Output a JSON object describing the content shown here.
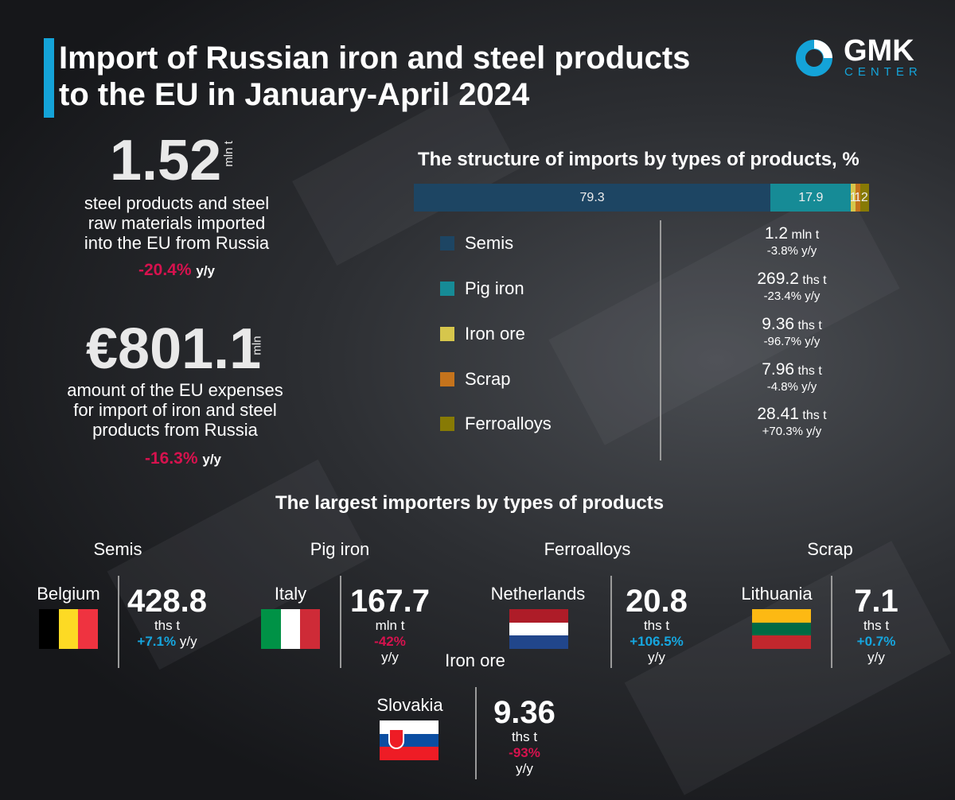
{
  "header": {
    "title_line1": "Import of Russian iron and steel products",
    "title_line2": "to the EU in January-April 2024",
    "accent_color": "#14a3d8"
  },
  "logo": {
    "name": "GMK",
    "sub": "CENTER"
  },
  "kpi_volume": {
    "value": "1.52",
    "unit": "mln t",
    "desc": [
      "steel products and steel",
      "raw materials imported",
      "into the EU from Russia"
    ],
    "change": "-20.4%",
    "yy": "y/y"
  },
  "kpi_cost": {
    "value": "€801.1",
    "unit": "mln",
    "desc": [
      "amount of the EU expenses",
      "for import of iron and steel",
      "products from Russia"
    ],
    "change": "-16.3%",
    "yy": "y/y"
  },
  "chart_data": {
    "type": "bar",
    "orientation": "horizontal-stacked",
    "title": "The structure of imports by types of products, %",
    "categories": [
      "Semis",
      "Pig iron",
      "Iron ore",
      "Scrap",
      "Ferroalloys"
    ],
    "values": [
      79.3,
      17.9,
      1,
      1,
      2
    ],
    "data_labels": [
      "79.3",
      "17.9",
      "1",
      "1",
      "2"
    ],
    "colors": [
      "#1d4563",
      "#168b96",
      "#d6c64c",
      "#c5731c",
      "#877a05"
    ],
    "legend": "below-left"
  },
  "volumes": [
    {
      "value": "1.2",
      "unit": "mln t",
      "change": "-3.8% y/y"
    },
    {
      "value": "269.2",
      "unit": "ths t",
      "change": "-23.4% y/y"
    },
    {
      "value": "9.36",
      "unit": "ths t",
      "change": "-96.7% y/y"
    },
    {
      "value": "7.96",
      "unit": "ths t",
      "change": "-4.8% y/y"
    },
    {
      "value": "28.41",
      "unit": "ths t",
      "change": "+70.3% y/y"
    }
  ],
  "importers": {
    "title": "The largest importers by types of products",
    "items": [
      {
        "category": "Semis",
        "country": "Belgium",
        "value": "428.8",
        "unit": "ths t",
        "change": "+7.1%",
        "yy": "y/y"
      },
      {
        "category": "Pig iron",
        "country": "Italy",
        "value": "167.7",
        "unit": "mln t",
        "change": "-42%",
        "yy": "y/y"
      },
      {
        "category": "Ferroalloys",
        "country": "Netherlands",
        "value": "20.8",
        "unit": "ths t",
        "change": "+106.5%",
        "yy": "y/y"
      },
      {
        "category": "Scrap",
        "country": "Lithuania",
        "value": "7.1",
        "unit": "ths t",
        "change": "+0.7%",
        "yy": "y/y"
      },
      {
        "category": "Iron ore",
        "country": "Slovakia",
        "value": "9.36",
        "unit": "ths t",
        "change": "-93%",
        "yy": "y/y"
      }
    ]
  }
}
